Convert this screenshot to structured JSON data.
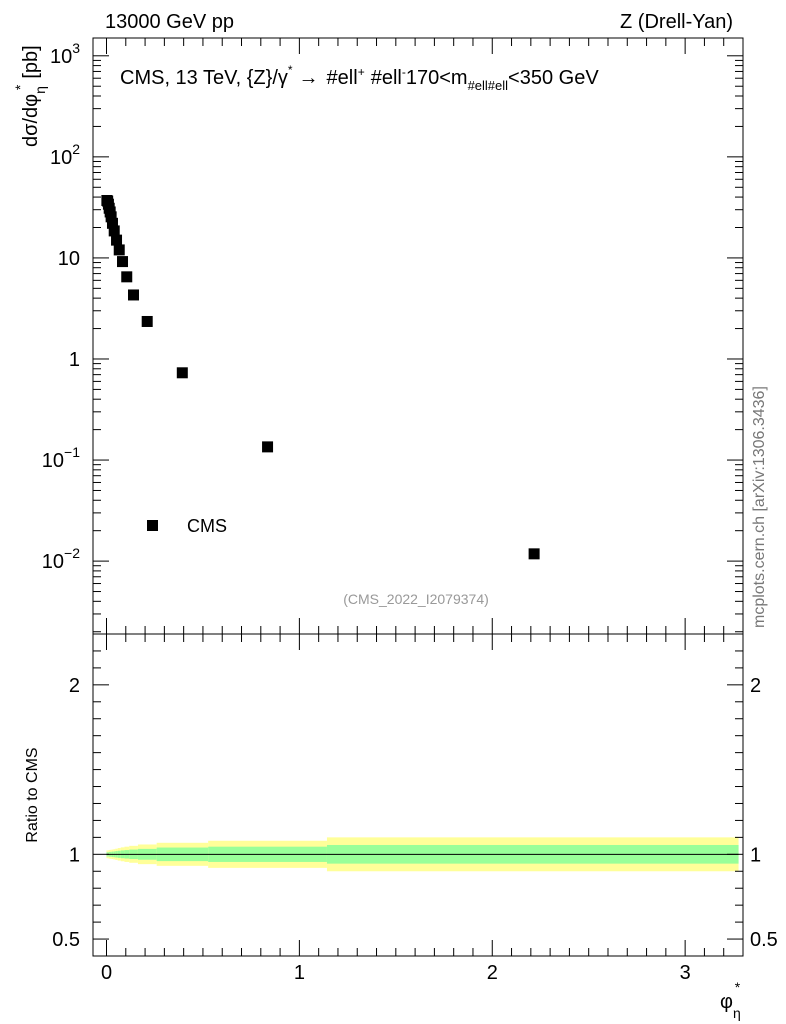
{
  "header": {
    "left": "13000 GeV pp",
    "right": "Z (Drell-Yan)"
  },
  "side_label": "mcplots.cern.ch [arXiv:1306.3436]",
  "chart_data": [
    {
      "type": "scatter",
      "panel": "main",
      "title": "CMS, 13 TeV, {Z}/γ* → #ell+ #ell-, 170<m#ell#ell<350 GeV",
      "title_parts": {
        "lead": "CMS, 13 TeV, {Z}/γ",
        "star": "*",
        "arrow": "→",
        "ell1": "#ell",
        "plus": "+",
        "ell2": "#ell",
        "minus": "-",
        "mass": "170<m",
        "mass_sub": "#ell#ell",
        "mass_tail": "<350 GeV"
      },
      "ylabel": "dσ/dφη* [pb]",
      "ylabel_parts": {
        "main": "dσ/dφ",
        "sub": "η",
        "sup": "*",
        "unit": "[pb]"
      },
      "yscale": "log",
      "ylim": [
        0.0019,
        1500
      ],
      "xlim": [
        -0.07,
        3.3
      ],
      "ytick_labels": [
        {
          "value": 1000,
          "base": "10",
          "exp": "3"
        },
        {
          "value": 100,
          "base": "10",
          "exp": "2"
        },
        {
          "value": 10,
          "base": "10",
          "exp": ""
        },
        {
          "value": 1,
          "base": "1",
          "exp": ""
        },
        {
          "value": 0.1,
          "base": "10",
          "exp": "−1"
        },
        {
          "value": 0.01,
          "base": "10",
          "exp": "−2"
        }
      ],
      "legend": [
        {
          "label": "CMS",
          "marker": "square",
          "color": "#000000"
        }
      ],
      "legend_placement": "bottom-left",
      "annotation": "(CMS_2022_I2079374)",
      "series": [
        {
          "name": "CMS",
          "x": [
            0.002,
            0.006,
            0.01,
            0.014,
            0.019,
            0.024,
            0.031,
            0.04,
            0.052,
            0.066,
            0.083,
            0.105,
            0.14,
            0.211,
            0.393,
            0.835,
            2.217
          ],
          "y": [
            37.0,
            36.5,
            34.0,
            31.0,
            28.5,
            25.5,
            22.0,
            18.5,
            15.0,
            12.0,
            9.2,
            6.5,
            4.3,
            2.35,
            0.73,
            0.135,
            0.0118
          ]
        }
      ]
    },
    {
      "type": "area",
      "panel": "ratio",
      "ylabel": "Ratio to CMS",
      "xlabel": "φη*",
      "xlabel_parts": {
        "main": "φ",
        "sub": "η",
        "sup": "*"
      },
      "ylim": [
        0.4,
        2.3
      ],
      "xlim": [
        -0.07,
        3.3
      ],
      "xtick_labels": [
        {
          "value": 0,
          "label": "0"
        },
        {
          "value": 1,
          "label": "1"
        },
        {
          "value": 2,
          "label": "2"
        },
        {
          "value": 3,
          "label": "3"
        }
      ],
      "ytick_labels": [
        {
          "value": 0.5,
          "label": "0.5"
        },
        {
          "value": 1,
          "label": "1"
        },
        {
          "value": 2,
          "label": "2"
        }
      ],
      "reference_line": 1.0,
      "bands": {
        "edges": [
          0.0,
          0.004,
          0.008,
          0.012,
          0.016,
          0.021,
          0.027,
          0.035,
          0.045,
          0.058,
          0.074,
          0.093,
          0.118,
          0.163,
          0.26,
          0.527,
          1.143,
          3.277
        ],
        "outer": {
          "color": "#ffff99",
          "half_width": [
            0.023,
            0.023,
            0.024,
            0.025,
            0.026,
            0.027,
            0.028,
            0.03,
            0.033,
            0.037,
            0.041,
            0.045,
            0.05,
            0.058,
            0.068,
            0.08,
            0.1
          ]
        },
        "inner": {
          "color": "#99ff99",
          "half_width": [
            0.013,
            0.013,
            0.013,
            0.014,
            0.014,
            0.015,
            0.016,
            0.017,
            0.019,
            0.021,
            0.023,
            0.025,
            0.028,
            0.032,
            0.04,
            0.045,
            0.055
          ]
        }
      }
    }
  ]
}
